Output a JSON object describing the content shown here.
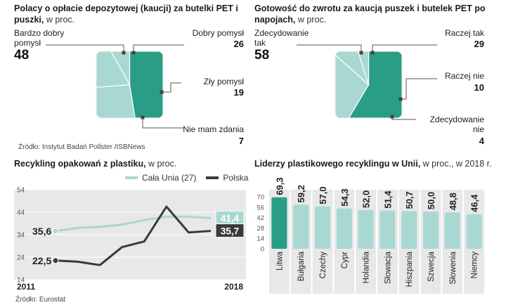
{
  "colors": {
    "dark_teal": "#2a9d87",
    "light_teal": "#a9d8d2",
    "dark_line": "#3a3a3a",
    "panel_gray": "#e8e8e8"
  },
  "panel1": {
    "title_bold": "Polacy o opłacie depozytowej (kaucji) za butelki PET i puszki,",
    "title_light": "w proc.",
    "chart_data": {
      "type": "pie",
      "title": "Polacy o opłacie depozytowej (kaucji) za butelki PET i puszki, w proc.",
      "slices": [
        {
          "label": "Bardzo dobry pomysł",
          "value": 48
        },
        {
          "label": "Dobry pomysł",
          "value": 26
        },
        {
          "label": "Zły pomysł",
          "value": 19
        },
        {
          "label": "Nie mam zdania",
          "value": 7
        }
      ]
    },
    "source": "Źródło: Instytut Badań Pollster /ISBNews"
  },
  "panel2": {
    "title_bold": "Gotowość do zwrotu za kaucją puszek i butelek PET po napojach,",
    "title_light": "w proc.",
    "chart_data": {
      "type": "pie",
      "title": "Gotowość do zwrotu za kaucją puszek i butelek PET po napojach, w proc.",
      "slices": [
        {
          "label": "Zdecydowanie tak",
          "value": 58
        },
        {
          "label": "Raczej tak",
          "value": 29
        },
        {
          "label": "Raczej nie",
          "value": 10
        },
        {
          "label": "Zdecydowanie nie",
          "value": 4
        }
      ]
    }
  },
  "panel3": {
    "title_bold": "Recykling opakowań z plastiku,",
    "title_light": "w proc.",
    "legend": [
      "Cała Unia (27)",
      "Polska"
    ],
    "chart_data": {
      "type": "line",
      "title": "Recykling opakowań z plastiku, w proc.",
      "x": [
        2011,
        2012,
        2013,
        2014,
        2015,
        2016,
        2017,
        2018
      ],
      "x_tick_labels": [
        "2011",
        "2018"
      ],
      "y_ticks": [
        14,
        24,
        34,
        44,
        54
      ],
      "ylim": [
        14,
        54
      ],
      "series": [
        {
          "name": "Cała Unia (27)",
          "values": [
            35.6,
            37.0,
            37.5,
            38.5,
            40.5,
            42.0,
            42.0,
            41.4
          ]
        },
        {
          "name": "Polska",
          "values": [
            22.5,
            22.0,
            20.5,
            28.5,
            31.0,
            46.5,
            35.0,
            35.7
          ]
        }
      ],
      "labels": {
        "eu_start": "35,6",
        "eu_end": "41,4",
        "pl_start": "22,5",
        "pl_end": "35,7"
      }
    },
    "source": "Źródło: Eurostat"
  },
  "panel4": {
    "title_bold": "Liderzy plastikowego recyklingu w Unii,",
    "title_light": "w proc., w 2018 r.",
    "chart_data": {
      "type": "bar",
      "title": "Liderzy plastikowego recyklingu w Unii, w proc., w 2018 r.",
      "categories": [
        "Litwa",
        "Bułgaria",
        "Czechy",
        "Cypr",
        "Holandia",
        "Słowacja",
        "Hiszpania",
        "Szwecja",
        "Słowenia",
        "Niemcy"
      ],
      "values": [
        69.3,
        59.2,
        57.0,
        54.3,
        52.0,
        51.4,
        50.7,
        50.0,
        48.8,
        46.4
      ],
      "value_labels": [
        "69,3",
        "59,2",
        "57,0",
        "54,3",
        "52,0",
        "51,4",
        "50,7",
        "50,0",
        "48,8",
        "46,4"
      ],
      "y_ticks": [
        0,
        14,
        28,
        42,
        56,
        70
      ],
      "ylim": [
        0,
        70
      ]
    }
  }
}
